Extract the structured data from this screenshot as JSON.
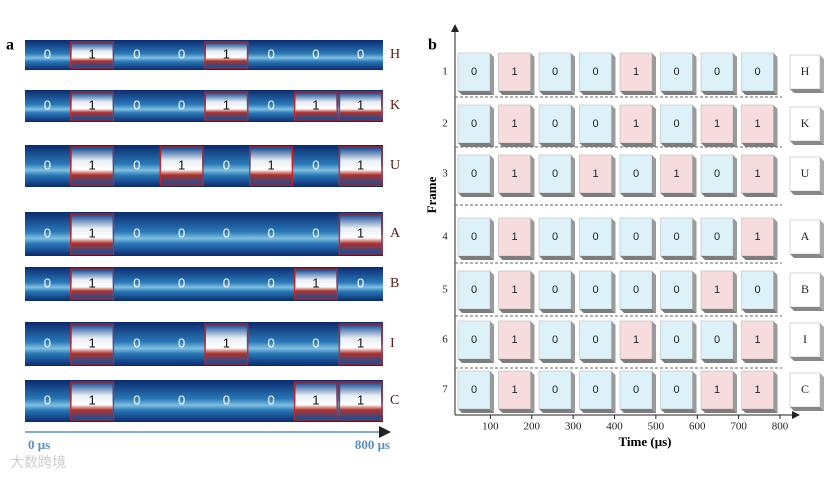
{
  "panel_a": {
    "label": "a",
    "start_label": "0 μs",
    "end_label": "800 μs"
  },
  "panel_b": {
    "label": "b",
    "x_label": "Time (μs)",
    "y_label": "Frame",
    "xticks": [
      100,
      200,
      300,
      400,
      500,
      600,
      700,
      800
    ],
    "frames": [
      1,
      2,
      3,
      4,
      5,
      6,
      7
    ]
  },
  "rows": [
    {
      "letter": "H",
      "bits": [
        0,
        1,
        0,
        0,
        1,
        0,
        0,
        0
      ]
    },
    {
      "letter": "K",
      "bits": [
        0,
        1,
        0,
        0,
        1,
        0,
        1,
        1
      ]
    },
    {
      "letter": "U",
      "bits": [
        0,
        1,
        0,
        1,
        0,
        1,
        0,
        1
      ]
    },
    {
      "letter": "A",
      "bits": [
        0,
        1,
        0,
        0,
        0,
        0,
        0,
        1
      ]
    },
    {
      "letter": "B",
      "bits": [
        0,
        1,
        0,
        0,
        0,
        0,
        1,
        0
      ]
    },
    {
      "letter": "I",
      "bits": [
        0,
        1,
        0,
        0,
        1,
        0,
        0,
        1
      ]
    },
    {
      "letter": "C",
      "bits": [
        0,
        1,
        0,
        0,
        0,
        0,
        1,
        1
      ]
    }
  ],
  "watermark": "大数跨境"
}
